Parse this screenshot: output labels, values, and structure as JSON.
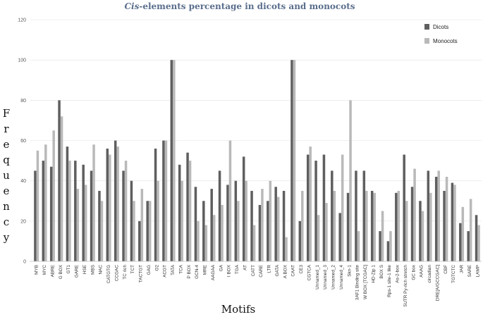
{
  "chart_data": {
    "type": "bar",
    "title_italic": "Cis",
    "title_rest": "-elements percentage in dicots and monocots",
    "xlabel": "Motifs",
    "ylabel": "Frequency",
    "ylim": [
      0,
      120
    ],
    "yticks": [
      0,
      20,
      40,
      60,
      80,
      100,
      120
    ],
    "legend_position": "top-right",
    "categories": [
      "MYB",
      "MYC",
      "ABRE",
      "G BOX",
      "GT1",
      "GARE",
      "HSE",
      "MBS",
      "NAC",
      "CATGTG",
      "CCGAC",
      "TC rich",
      "TCT",
      "TACTGT",
      "GAG",
      "O2",
      "ACGT",
      "TATA",
      "TCA",
      "P BOX",
      "GCN-4",
      "MRE",
      "AAGAA",
      "GA",
      "I BOX",
      "TGA",
      "AT",
      "CATT",
      "CARE",
      "LTR",
      "GATA",
      "A BOX",
      "CAAT",
      "CE3",
      "CGTCA",
      "Unnamed_1",
      "Unnamed_3",
      "Unnamed_2",
      "Unnamed_4",
      "Skn-1",
      "3AF1 Binding site",
      "W BOX [TCGAC]",
      "HD-Zip 1",
      "BOX S",
      "Rps-1 site-1 like",
      "As-2-box",
      "5UTR Py-rich stretch",
      "GC box",
      "AAAG",
      "circadian",
      "DRE[A/GCCGAC]",
      "CBF",
      "TGTCTC",
      "JAR",
      "SARE",
      "LAMP"
    ],
    "series": [
      {
        "name": "Dicots",
        "color": "#5f5f5f",
        "values": [
          45,
          50,
          47,
          80,
          57,
          50,
          48,
          45,
          35,
          56,
          60,
          45,
          40,
          20,
          30,
          56,
          60,
          100,
          48,
          54,
          37,
          30,
          36,
          45,
          38,
          40,
          52,
          35,
          28,
          30,
          37,
          35,
          100,
          20,
          53,
          50,
          53,
          45,
          24,
          34,
          45,
          45,
          35,
          15,
          10,
          34,
          53,
          37,
          30,
          45,
          42,
          35,
          39,
          19,
          15,
          23
        ]
      },
      {
        "name": "Monocots",
        "color": "#b9b9b9",
        "values": [
          55,
          58,
          65,
          72,
          50,
          36,
          38,
          58,
          30,
          53,
          57,
          50,
          30,
          36,
          30,
          40,
          60,
          100,
          40,
          50,
          20,
          18,
          23,
          28,
          60,
          30,
          40,
          18,
          36,
          40,
          32,
          12,
          100,
          35,
          57,
          23,
          29,
          35,
          53,
          80,
          15,
          35,
          34,
          25,
          15,
          35,
          30,
          46,
          25,
          34,
          45,
          42,
          38,
          27,
          31,
          18
        ]
      }
    ]
  }
}
